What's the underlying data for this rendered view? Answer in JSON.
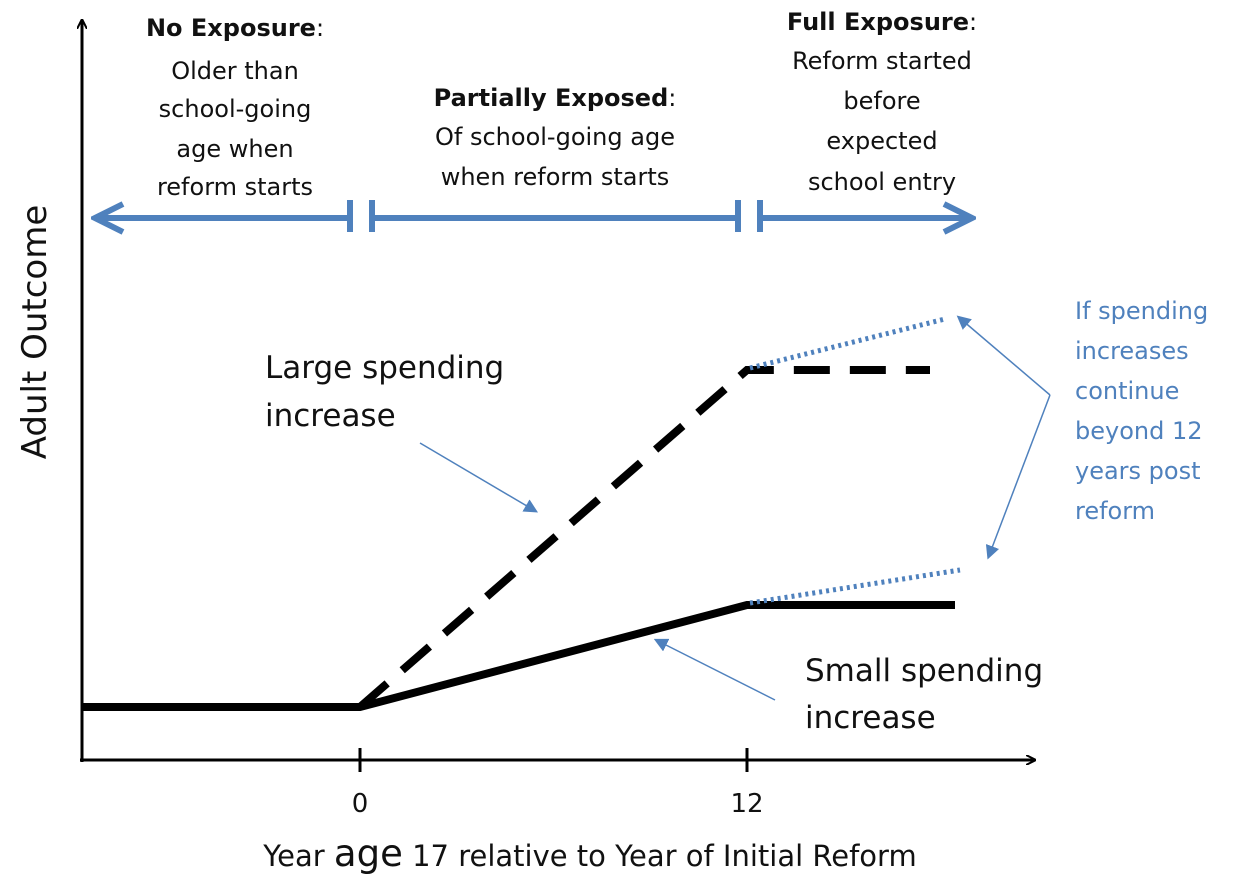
{
  "y_axis_label": "Adult Outcome",
  "x_axis_label": {
    "before": "Year ",
    "emphasis": "age",
    "after": " 17 relative to Year of Initial Reform"
  },
  "x_ticks": [
    "0",
    "12"
  ],
  "regions": [
    {
      "heading": "No Exposure",
      "heading_end": ":",
      "lines": [
        "Older than",
        "school-going",
        "age when",
        "reform starts"
      ]
    },
    {
      "heading": "Partially Exposed",
      "heading_end": ":",
      "lines": [
        "Of school-going age",
        "when reform starts"
      ]
    },
    {
      "heading": "Full Exposure",
      "heading_end": ":",
      "lines": [
        "Reform started",
        "before",
        "expected",
        "school entry"
      ]
    }
  ],
  "large_label": [
    "Large spending",
    "increase"
  ],
  "small_label": [
    "Small spending",
    "increase"
  ],
  "note": [
    "If spending",
    "increases",
    "continue",
    "beyond 12",
    "years post",
    "reform"
  ]
}
